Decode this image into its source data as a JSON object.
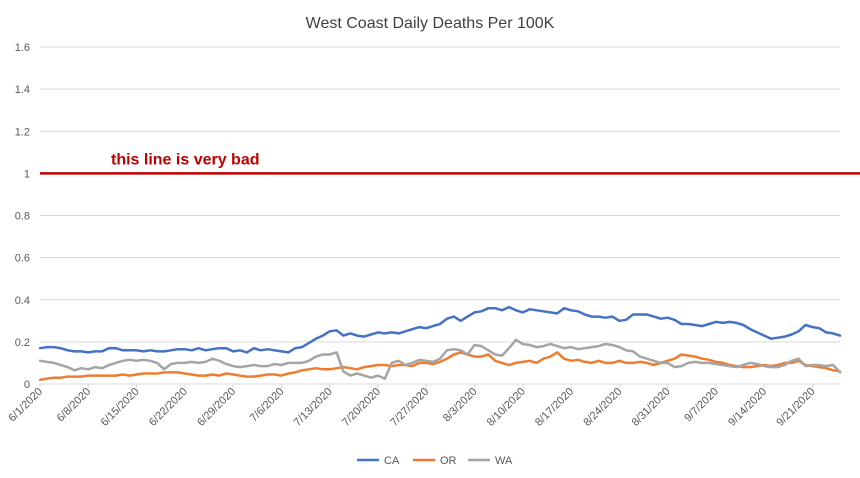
{
  "chart_data": {
    "type": "line",
    "title": "West Coast Daily Deaths Per 100K",
    "xlabel": "",
    "ylabel": "",
    "ylim": [
      0,
      1.6
    ],
    "yticks": [
      "0",
      "0.2",
      "0.4",
      "0.6",
      "0.8",
      "1",
      "1.2",
      "1.4",
      "1.6"
    ],
    "grid": "horizontal",
    "legend_position": "bottom",
    "start_date": "6/1/2020",
    "end_date": "9/21/2020",
    "x_tick_labels": [
      "6/1/2020",
      "6/8/2020",
      "6/15/2020",
      "6/22/2020",
      "6/29/2020",
      "7/6/2020",
      "7/13/2020",
      "7/20/2020",
      "7/27/2020",
      "8/3/2020",
      "8/10/2020",
      "8/17/2020",
      "8/24/2020",
      "8/31/2020",
      "9/7/2020",
      "9/14/2020",
      "9/21/2020"
    ],
    "reference_line": {
      "value": 1,
      "label": "this line is very bad",
      "color": "#c00000"
    },
    "series": [
      {
        "name": "CA",
        "color": "#4472c4",
        "values": [
          0.17,
          0.175,
          0.175,
          0.17,
          0.16,
          0.155,
          0.155,
          0.15,
          0.155,
          0.155,
          0.17,
          0.17,
          0.16,
          0.16,
          0.16,
          0.155,
          0.16,
          0.155,
          0.155,
          0.16,
          0.165,
          0.165,
          0.16,
          0.17,
          0.16,
          0.165,
          0.17,
          0.17,
          0.155,
          0.16,
          0.15,
          0.17,
          0.16,
          0.165,
          0.16,
          0.155,
          0.15,
          0.17,
          0.175,
          0.195,
          0.215,
          0.23,
          0.25,
          0.255,
          0.23,
          0.24,
          0.23,
          0.225,
          0.235,
          0.245,
          0.24,
          0.245,
          0.24,
          0.25,
          0.26,
          0.27,
          0.265,
          0.275,
          0.285,
          0.31,
          0.32,
          0.3,
          0.32,
          0.34,
          0.345,
          0.36,
          0.36,
          0.35,
          0.365,
          0.35,
          0.34,
          0.355,
          0.35,
          0.345,
          0.34,
          0.335,
          0.36,
          0.35,
          0.345,
          0.33,
          0.32,
          0.32,
          0.315,
          0.32,
          0.3,
          0.305,
          0.33,
          0.33,
          0.33,
          0.32,
          0.31,
          0.315,
          0.305,
          0.285,
          0.285,
          0.28,
          0.275,
          0.285,
          0.295,
          0.29,
          0.295,
          0.29,
          0.28,
          0.26,
          0.245,
          0.23,
          0.215,
          0.22,
          0.225,
          0.235,
          0.25,
          0.28,
          0.27,
          0.265,
          0.245,
          0.24,
          0.23
        ]
      },
      {
        "name": "OR",
        "color": "#ed7d31",
        "values": [
          0.02,
          0.025,
          0.03,
          0.03,
          0.035,
          0.035,
          0.035,
          0.04,
          0.04,
          0.04,
          0.04,
          0.04,
          0.045,
          0.04,
          0.045,
          0.05,
          0.05,
          0.05,
          0.055,
          0.055,
          0.055,
          0.05,
          0.045,
          0.04,
          0.04,
          0.045,
          0.04,
          0.05,
          0.045,
          0.04,
          0.035,
          0.035,
          0.04,
          0.045,
          0.045,
          0.04,
          0.05,
          0.055,
          0.065,
          0.07,
          0.075,
          0.07,
          0.07,
          0.075,
          0.08,
          0.075,
          0.07,
          0.08,
          0.085,
          0.09,
          0.09,
          0.085,
          0.09,
          0.09,
          0.085,
          0.1,
          0.1,
          0.095,
          0.105,
          0.12,
          0.14,
          0.15,
          0.14,
          0.13,
          0.13,
          0.14,
          0.11,
          0.1,
          0.09,
          0.1,
          0.105,
          0.11,
          0.1,
          0.12,
          0.13,
          0.15,
          0.12,
          0.11,
          0.115,
          0.105,
          0.1,
          0.11,
          0.1,
          0.1,
          0.11,
          0.1,
          0.1,
          0.105,
          0.1,
          0.09,
          0.1,
          0.11,
          0.12,
          0.14,
          0.135,
          0.13,
          0.12,
          0.115,
          0.105,
          0.1,
          0.09,
          0.085,
          0.08,
          0.08,
          0.085,
          0.09,
          0.085,
          0.09,
          0.1,
          0.1,
          0.11,
          0.09,
          0.085,
          0.08,
          0.075,
          0.065,
          0.06
        ]
      },
      {
        "name": "WA",
        "color": "#a5a5a5",
        "values": [
          0.11,
          0.105,
          0.1,
          0.09,
          0.08,
          0.065,
          0.075,
          0.07,
          0.08,
          0.075,
          0.09,
          0.1,
          0.11,
          0.115,
          0.11,
          0.115,
          0.11,
          0.1,
          0.07,
          0.095,
          0.1,
          0.1,
          0.105,
          0.1,
          0.105,
          0.12,
          0.11,
          0.095,
          0.085,
          0.08,
          0.085,
          0.09,
          0.085,
          0.085,
          0.095,
          0.09,
          0.1,
          0.1,
          0.1,
          0.11,
          0.13,
          0.14,
          0.14,
          0.15,
          0.06,
          0.04,
          0.05,
          0.04,
          0.03,
          0.04,
          0.025,
          0.1,
          0.11,
          0.09,
          0.1,
          0.115,
          0.11,
          0.105,
          0.12,
          0.16,
          0.165,
          0.16,
          0.14,
          0.185,
          0.18,
          0.16,
          0.14,
          0.135,
          0.17,
          0.21,
          0.19,
          0.185,
          0.175,
          0.18,
          0.19,
          0.18,
          0.17,
          0.175,
          0.165,
          0.17,
          0.175,
          0.18,
          0.19,
          0.185,
          0.175,
          0.16,
          0.155,
          0.13,
          0.12,
          0.11,
          0.1,
          0.1,
          0.08,
          0.085,
          0.1,
          0.105,
          0.1,
          0.1,
          0.095,
          0.09,
          0.085,
          0.08,
          0.09,
          0.1,
          0.095,
          0.085,
          0.08,
          0.08,
          0.09,
          0.11,
          0.12,
          0.085,
          0.09,
          0.09,
          0.085,
          0.09,
          0.055
        ]
      }
    ]
  }
}
